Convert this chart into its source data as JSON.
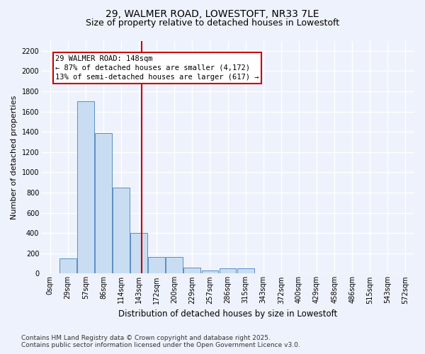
{
  "title_line1": "29, WALMER ROAD, LOWESTOFT, NR33 7LE",
  "title_line2": "Size of property relative to detached houses in Lowestoft",
  "xlabel": "Distribution of detached houses by size in Lowestoft",
  "ylabel": "Number of detached properties",
  "bar_color": "#c9ddf2",
  "bar_edge_color": "#5b8ec4",
  "categories": [
    "0sqm",
    "29sqm",
    "57sqm",
    "86sqm",
    "114sqm",
    "143sqm",
    "172sqm",
    "200sqm",
    "229sqm",
    "257sqm",
    "286sqm",
    "315sqm",
    "343sqm",
    "372sqm",
    "400sqm",
    "429sqm",
    "458sqm",
    "486sqm",
    "515sqm",
    "543sqm",
    "572sqm"
  ],
  "values": [
    0,
    150,
    1700,
    1390,
    850,
    400,
    165,
    165,
    60,
    30,
    50,
    50,
    0,
    0,
    0,
    0,
    0,
    0,
    0,
    0,
    0
  ],
  "ylim": [
    0,
    2300
  ],
  "yticks": [
    0,
    200,
    400,
    600,
    800,
    1000,
    1200,
    1400,
    1600,
    1800,
    2000,
    2200
  ],
  "vline_color": "#cc0000",
  "annotation_text": "29 WALMER ROAD: 148sqm\n← 87% of detached houses are smaller (4,172)\n13% of semi-detached houses are larger (617) →",
  "annotation_box_color": "white",
  "annotation_box_edge_color": "#cc0000",
  "footer_line1": "Contains HM Land Registry data © Crown copyright and database right 2025.",
  "footer_line2": "Contains public sector information licensed under the Open Government Licence v3.0.",
  "background_color": "#eef2fc",
  "grid_color": "#ffffff",
  "title_fontsize": 10,
  "subtitle_fontsize": 9,
  "tick_fontsize": 7,
  "ylabel_fontsize": 8,
  "xlabel_fontsize": 8.5,
  "footer_fontsize": 6.5,
  "annotation_fontsize": 7.5
}
